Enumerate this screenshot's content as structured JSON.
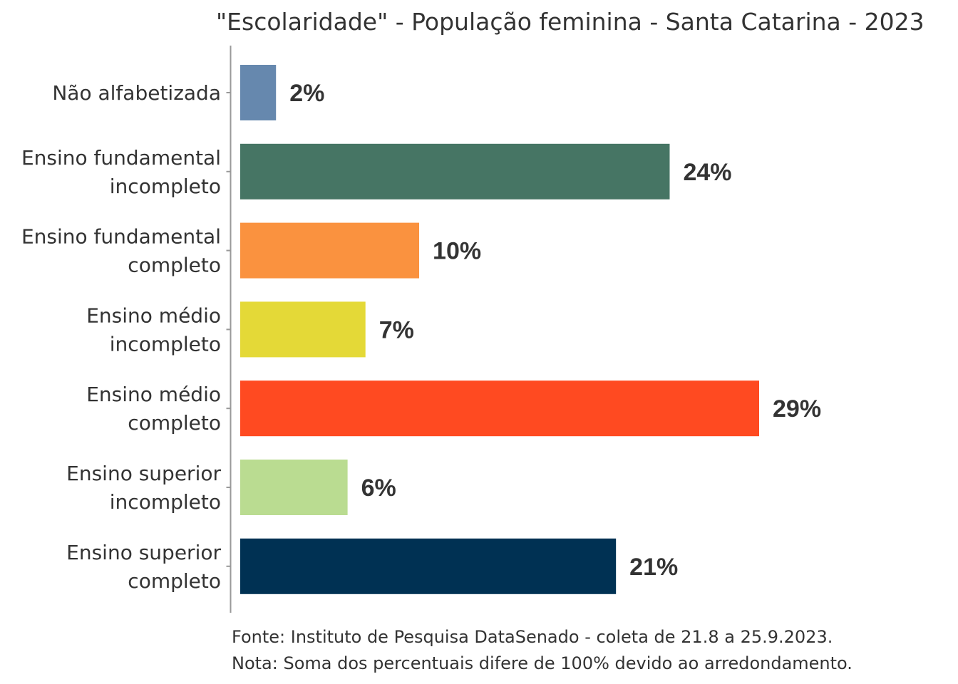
{
  "chart_data": {
    "type": "bar",
    "orientation": "horizontal",
    "title": "\"Escolaridade\" - População feminina - Santa Catarina - 2023",
    "xlabel": "",
    "ylabel": "",
    "xlim": [
      0,
      29
    ],
    "grid": false,
    "legend": "none",
    "categories": [
      [
        "Não alfabetizada"
      ],
      [
        "Ensino fundamental",
        "incompleto"
      ],
      [
        "Ensino fundamental",
        "completo"
      ],
      [
        "Ensino médio",
        "incompleto"
      ],
      [
        "Ensino médio",
        "completo"
      ],
      [
        "Ensino superior",
        "incompleto"
      ],
      [
        "Ensino superior",
        "completo"
      ]
    ],
    "values": [
      2,
      24,
      10,
      7,
      29,
      6,
      21
    ],
    "value_labels": [
      "2%",
      "24%",
      "10%",
      "7%",
      "29%",
      "6%",
      "21%"
    ],
    "colors": [
      "#6688AE",
      "#467564",
      "#FA923F",
      "#E4D937",
      "#FF4A21",
      "#BADC91",
      "#003153"
    ],
    "unit": "%"
  },
  "footnotes": [
    "Fonte: Instituto de Pesquisa DataSenado - coleta de 21.8 a 25.9.2023.",
    "Nota: Soma dos percentuais difere de 100% devido ao arredondamento."
  ]
}
